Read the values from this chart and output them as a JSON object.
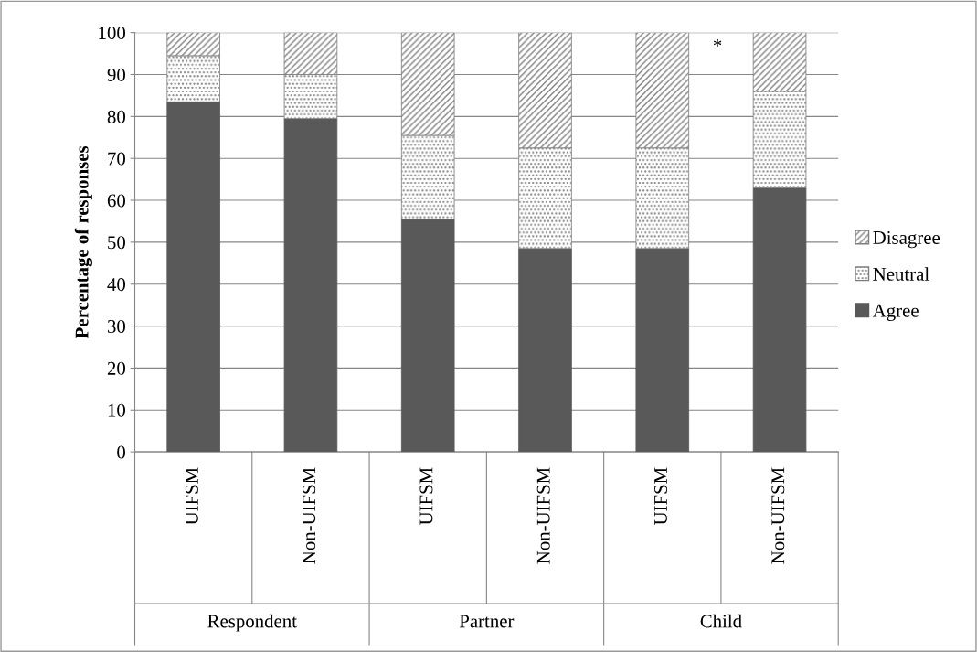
{
  "chart_data": {
    "type": "bar",
    "stacked": true,
    "ylabel": "Percentage of responses",
    "categories": [
      "UIFSM",
      "Non-UIFSM",
      "UIFSM",
      "Non-UIFSM",
      "UIFSM",
      "Non-UIFSM"
    ],
    "series": [
      {
        "name": "Agree",
        "color": "#595959",
        "values": [
          83.5,
          79.5,
          55.5,
          48.5,
          48.5,
          63
        ]
      },
      {
        "name": "Neutral",
        "color": "#7f7f7f",
        "values": [
          11,
          10.5,
          20,
          24,
          24,
          23
        ]
      },
      {
        "name": "Disagree",
        "color": "#7f7f7f",
        "values": [
          5.5,
          10,
          24.5,
          27.5,
          27.5,
          14
        ]
      }
    ],
    "annotations": [
      "Respondent",
      "Partner",
      "Child",
      "*"
    ],
    "ylim": [
      0,
      100
    ],
    "yticks": [
      0,
      10,
      20,
      30,
      40,
      50,
      60,
      70,
      80,
      90,
      100
    ],
    "grid": "y",
    "legend": "right"
  }
}
